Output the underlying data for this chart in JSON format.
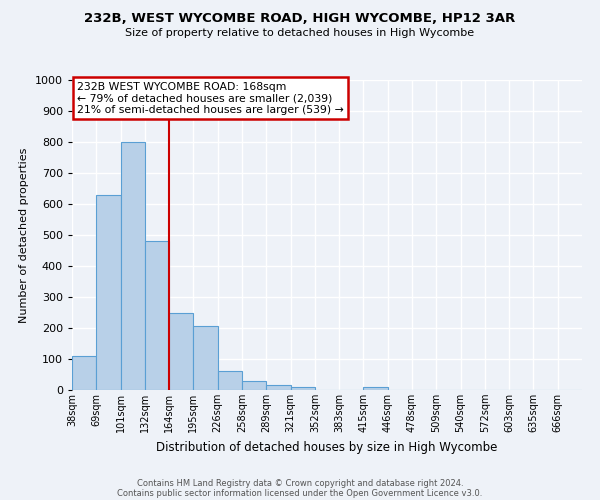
{
  "title": "232B, WEST WYCOMBE ROAD, HIGH WYCOMBE, HP12 3AR",
  "subtitle": "Size of property relative to detached houses in High Wycombe",
  "xlabel": "Distribution of detached houses by size in High Wycombe",
  "ylabel": "Number of detached properties",
  "bar_labels": [
    "38sqm",
    "69sqm",
    "101sqm",
    "132sqm",
    "164sqm",
    "195sqm",
    "226sqm",
    "258sqm",
    "289sqm",
    "321sqm",
    "352sqm",
    "383sqm",
    "415sqm",
    "446sqm",
    "478sqm",
    "509sqm",
    "540sqm",
    "572sqm",
    "603sqm",
    "635sqm",
    "666sqm"
  ],
  "bar_heights": [
    110,
    630,
    800,
    480,
    250,
    205,
    60,
    28,
    15,
    10,
    0,
    0,
    10,
    0,
    0,
    0,
    0,
    0,
    0,
    0,
    0
  ],
  "bar_color": "#b8d0e8",
  "bar_edge_color": "#5a9fd4",
  "vline_x_idx": 4,
  "vline_color": "#cc0000",
  "annotation_title": "232B WEST WYCOMBE ROAD: 168sqm",
  "annotation_line1": "← 79% of detached houses are smaller (2,039)",
  "annotation_line2": "21% of semi-detached houses are larger (539) →",
  "annotation_box_color": "white",
  "annotation_box_edge_color": "#cc0000",
  "ylim": [
    0,
    1000
  ],
  "yticks": [
    0,
    100,
    200,
    300,
    400,
    500,
    600,
    700,
    800,
    900,
    1000
  ],
  "footer1": "Contains HM Land Registry data © Crown copyright and database right 2024.",
  "footer2": "Contains public sector information licensed under the Open Government Licence v3.0.",
  "bg_color": "#eef2f8",
  "grid_color": "#ffffff"
}
